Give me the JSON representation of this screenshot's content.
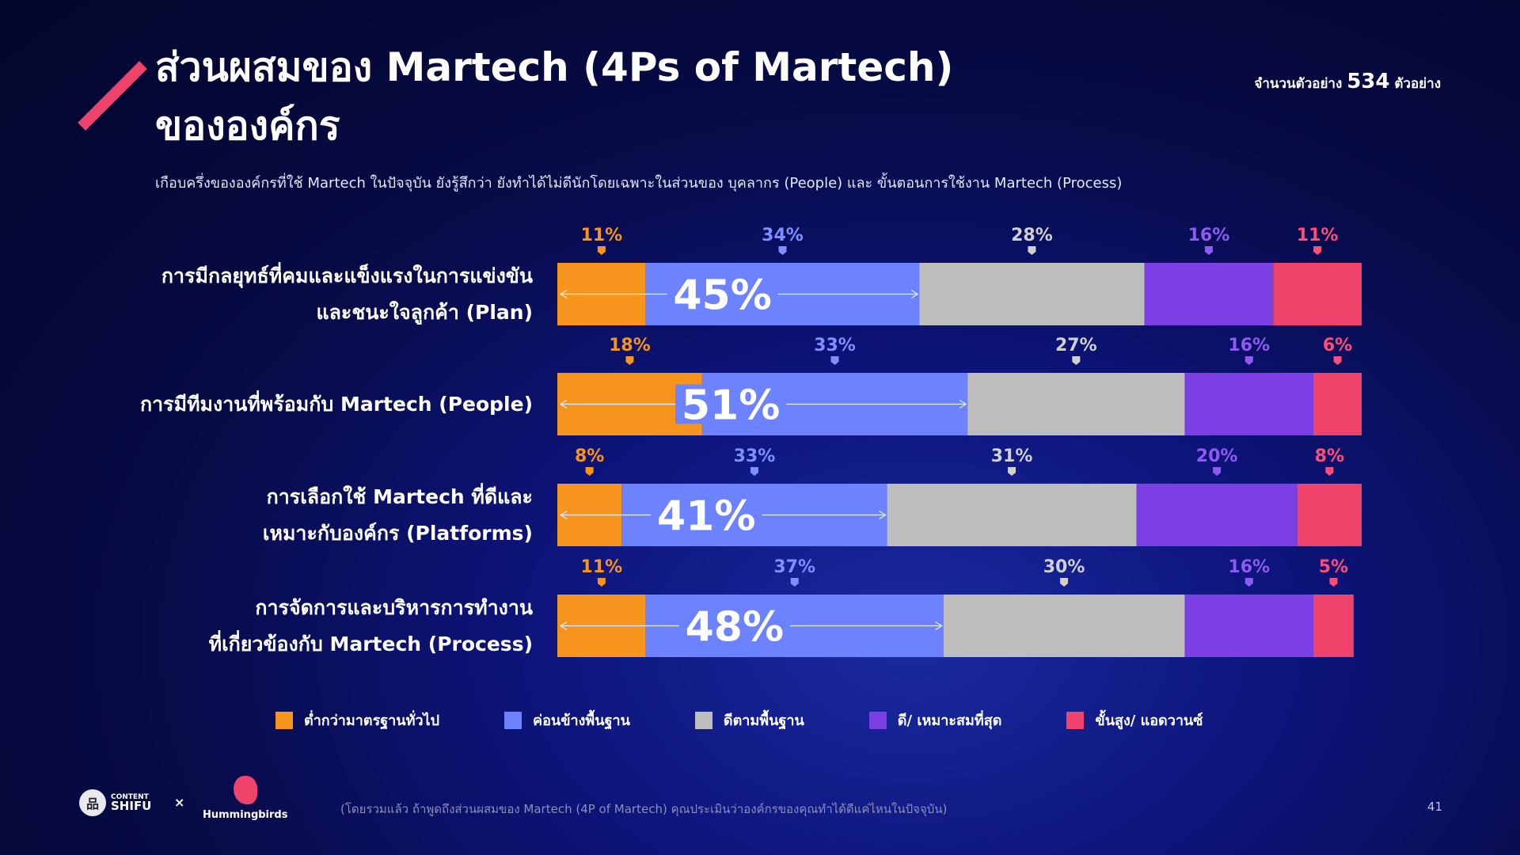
{
  "header": {
    "title_line1": "ส่วนผสมของ Martech (4Ps of Martech)",
    "title_line2": "ขององค์กร",
    "subtitle": "เกือบครึ่งขององค์กรที่ใช้ Martech ในปัจจุบัน ยังรู้สึกว่า ยังทำได้ไม่ดีนักโดยเฉพาะในส่วนของ บุคลากร (People) และ ขั้นตอนการใช้งาน Martech (Process)",
    "sample_prefix": "จำนวนตัวอย่าง",
    "sample_count": "534",
    "sample_suffix": "ตัวอย่าง"
  },
  "chart_data": {
    "type": "bar",
    "orientation": "horizontal",
    "stacked": true,
    "unit": "%",
    "categories": [
      "การมีกลยุทธ์ที่คมและแข็งแรงในการแข่งขัน และชนะใจลูกค้า (Plan)",
      "การมีทีมงานที่พร้อมกับ Martech (People)",
      "การเลือกใช้ Martech ที่ดีและ เหมาะกับองค์กร (Platforms)",
      "การจัดการและบริหารการทำงาน ที่เกี่ยวข้องกับ Martech (Process)"
    ],
    "category_lines": [
      [
        "การมีกลยุทธ์ที่คมและแข็งแรงในการแข่งขัน",
        "และชนะใจลูกค้า (Plan)"
      ],
      [
        "การมีทีมงานที่พร้อมกับ Martech (People)"
      ],
      [
        "การเลือกใช้ Martech ที่ดีและ",
        "เหมาะกับองค์กร (Platforms)"
      ],
      [
        "การจัดการและบริหารการทำงาน",
        "ที่เกี่ยวข้องกับ Martech (Process)"
      ]
    ],
    "series": [
      {
        "name": "ต่ำกว่ามาตรฐานทั่วไป",
        "color": "#F7941D",
        "values": [
          11,
          18,
          8,
          11
        ]
      },
      {
        "name": "ค่อนข้างพื้นฐาน",
        "color": "#6C82FF",
        "values": [
          34,
          33,
          33,
          37
        ]
      },
      {
        "name": "ดีตามพื้นฐาน",
        "color": "#BDBDBD",
        "values": [
          28,
          27,
          31,
          30
        ]
      },
      {
        "name": "ดี/ เหมาะสมที่สุด",
        "color": "#7B3FE4",
        "values": [
          16,
          16,
          20,
          16
        ]
      },
      {
        "name": "ขั้นสูง/ แอดวานซ์",
        "color": "#F0436B",
        "values": [
          11,
          6,
          8,
          5
        ]
      }
    ],
    "label_colors": [
      "#F7941D",
      "#7F8FFF",
      "#D0D0D0",
      "#8E5BF0",
      "#FF4D78"
    ],
    "combined_labels": [
      "45%",
      "51%",
      "41%",
      "48%"
    ],
    "legend": "bottom"
  },
  "footer": {
    "note": "(โดยรวมแล้ว ถ้าพูดถึงส่วนผสมของ Martech (4P of Martech) คุณประเมินว่าองค์กรของคุณทำได้ดีแค่ไหนในปัจจุบัน)",
    "page": "41",
    "logo1_small": "CONTENT",
    "logo1_big": "SHIFU",
    "separator": "×",
    "logo2": "Hummingbirds"
  }
}
